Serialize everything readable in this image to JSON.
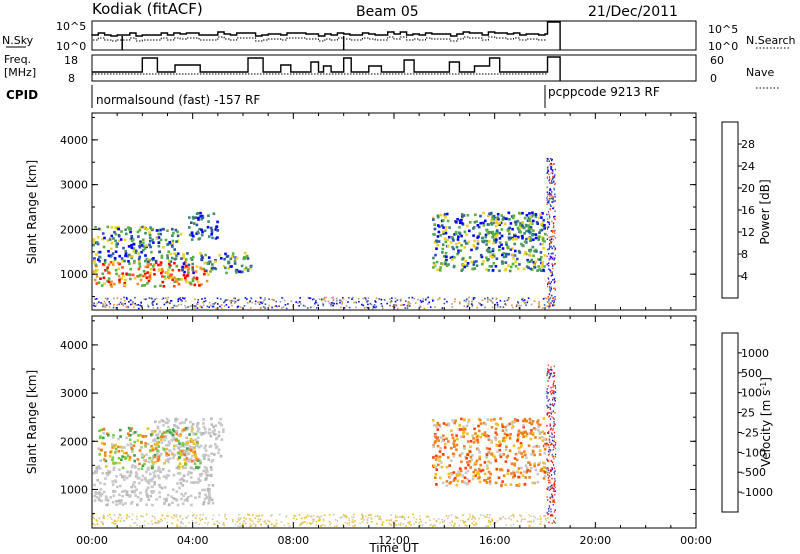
{
  "header": {
    "station": "Kodiak (fitACF)",
    "beam": "Beam 05",
    "date": "21/Dec/2011"
  },
  "summary_panels": {
    "nsky_label": "N.Sky",
    "nsearch_label": "N.Search",
    "nsky_ticks": [
      "10^5",
      "10^0"
    ],
    "nsearch_ticks": [
      "10^5",
      "10^0"
    ],
    "freq_label_line1": "Freq.",
    "freq_label_line2": "[MHz]",
    "freq_ticks": [
      "18",
      "8"
    ],
    "nave_label": "Nave",
    "nave_ticks": [
      "60",
      "0"
    ],
    "cpid_label": "CPID",
    "cpid_1": "normalsound (fast) -157 RF",
    "cpid_2": "pcppcode 9213 RF"
  },
  "chart_data": [
    {
      "type": "heatmap",
      "name": "power",
      "ylabel": "Slant Range [km]",
      "yticks": [
        "1000",
        "2000",
        "3000",
        "4000"
      ],
      "ylim": [
        200,
        4600
      ],
      "xlim": [
        0,
        24
      ],
      "colorbar_label": "Power [dB]",
      "colorbar_ticks": [
        "4",
        "8",
        "12",
        "16",
        "20",
        "24",
        "28"
      ],
      "colors": [
        "#0000ff",
        "#2a55a8",
        "#3f8a70",
        "#55b040",
        "#f0d020",
        "#f09030",
        "#ff5010",
        "#ff0000"
      ],
      "scatter_regions": [
        {
          "t0": 0.0,
          "t1": 4.6,
          "r0": 750,
          "r1": 1300,
          "level": "high"
        },
        {
          "t0": 0.0,
          "t1": 3.5,
          "r0": 1300,
          "r1": 2100,
          "level": "mid"
        },
        {
          "t0": 3.5,
          "t1": 6.3,
          "r0": 1050,
          "r1": 1500,
          "level": "mid"
        },
        {
          "t0": 3.8,
          "t1": 5.0,
          "r0": 1800,
          "r1": 2400,
          "level": "low"
        },
        {
          "t0": 13.5,
          "t1": 18.0,
          "r0": 1100,
          "r1": 2400,
          "level": "mid"
        },
        {
          "t0": 15.5,
          "t1": 17.5,
          "r0": 1800,
          "r1": 2300,
          "level": "mid"
        }
      ]
    },
    {
      "type": "heatmap",
      "name": "velocity",
      "ylabel": "Slant Range [km]",
      "xlabel": "Time UT",
      "yticks": [
        "1000",
        "2000",
        "3000",
        "4000"
      ],
      "ylim": [
        200,
        4600
      ],
      "xlim": [
        0,
        24
      ],
      "xticks": [
        "00:00",
        "04:00",
        "08:00",
        "12:00",
        "16:00",
        "20:00",
        "00:00"
      ],
      "colorbar_label": "Velocity [m s^-1]",
      "colorbar_ticks": [
        "1000",
        "500",
        "100",
        "25",
        "-25",
        "-100",
        "-500",
        "-1000"
      ],
      "colors": [
        "#2030c0",
        "#3080a0",
        "#40a050",
        "#70d040",
        "#c8c8c8",
        "#f0c020",
        "#f08020",
        "#ff4010",
        "#ff0000"
      ],
      "scatter_regions": [
        {
          "t0": 0.0,
          "t1": 4.8,
          "r0": 700,
          "r1": 1500,
          "level": "grey"
        },
        {
          "t0": 2.3,
          "t1": 5.2,
          "r0": 1600,
          "r1": 2500,
          "level": "grey"
        },
        {
          "t0": 0.2,
          "t1": 4.3,
          "r0": 1450,
          "r1": 2300,
          "level": "mixed"
        },
        {
          "t0": 13.5,
          "t1": 18.0,
          "r0": 1100,
          "r1": 2500,
          "level": "orange"
        }
      ]
    }
  ]
}
